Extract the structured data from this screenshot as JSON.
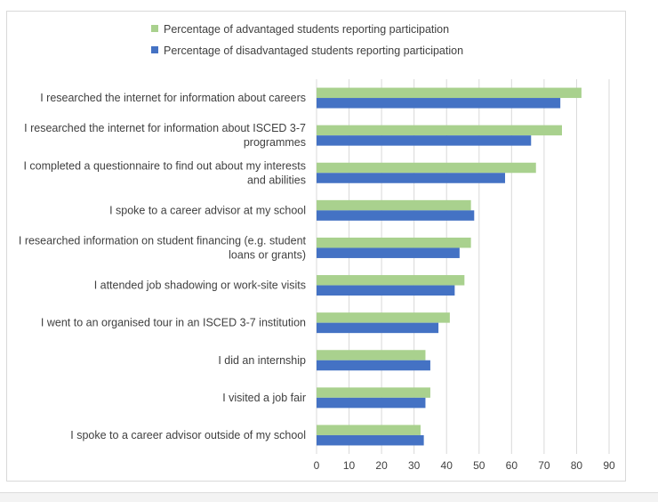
{
  "chart_data": {
    "type": "bar",
    "orientation": "horizontal",
    "title": "",
    "xlabel": "",
    "ylabel": "",
    "xlim": [
      0,
      90
    ],
    "xticks": [
      0,
      10,
      20,
      30,
      40,
      50,
      60,
      70,
      80,
      90
    ],
    "grid": true,
    "legend_position": "top",
    "categories": [
      [
        "I researched the internet for information about careers"
      ],
      [
        "I researched the internet for information about ISCED 3-7",
        "programmes"
      ],
      [
        "I completed a questionnaire to find out about my interests",
        "and abilities"
      ],
      [
        "I spoke to a career advisor at my school"
      ],
      [
        "I researched information on student financing (e.g. student",
        "loans or grants)"
      ],
      [
        "I attended job shadowing or work-site visits"
      ],
      [
        "I went to an organised tour in an ISCED 3-7 institution"
      ],
      [
        "I did an internship"
      ],
      [
        "I visited a job fair"
      ],
      [
        "I spoke to a career advisor outside of my school"
      ]
    ],
    "series": [
      {
        "name": "Percentage of advantaged students reporting participation",
        "color": "#a9d18e",
        "values": [
          81.5,
          75.5,
          67.5,
          47.5,
          47.5,
          45.5,
          41,
          33.5,
          35,
          32
        ]
      },
      {
        "name": "Percentage of disadvantaged students reporting participation",
        "color": "#4472c4",
        "values": [
          75,
          66,
          58,
          48.5,
          44,
          42.5,
          37.5,
          35,
          33.5,
          33
        ]
      }
    ]
  }
}
